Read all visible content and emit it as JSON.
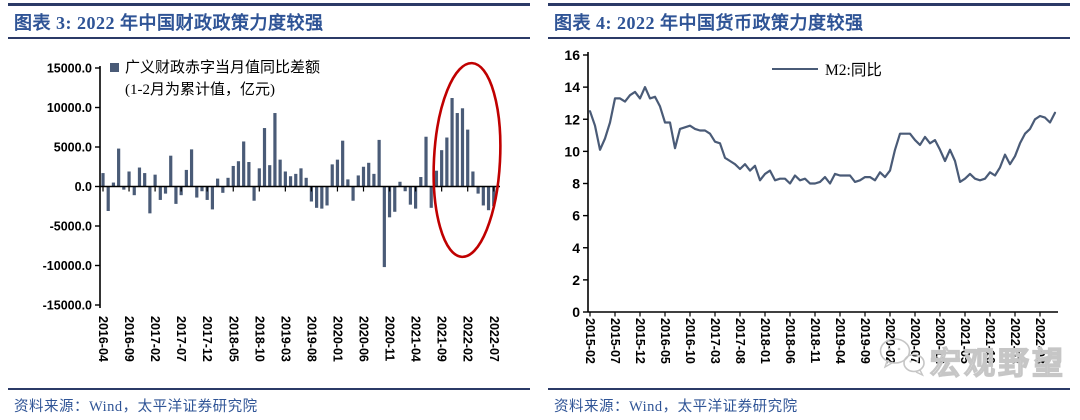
{
  "colors": {
    "rule_navy": "#2B3A67",
    "text_navy": "#2F5496",
    "series_blue": "#4A5B77",
    "axis_black": "#000000",
    "highlight_red": "#C00000",
    "watermark_gray": "#C6C6C6",
    "background": "#FFFFFF"
  },
  "panels": [
    {
      "title": "图表 3:  2022 年中国财政政策力度较强",
      "source": "资料来源：Wind，太平洋证券研究院",
      "legend": {
        "marker": "square",
        "line1": "广义财政赤字当月值同比差额",
        "line2": "(1-2月为累计值，亿元)"
      }
    },
    {
      "title": "图表 4:  2022 年中国货币政策力度较强",
      "source": "资料来源：Wind，太平洋证券研究院",
      "legend": {
        "marker": "line",
        "label": "M2:同比"
      }
    }
  ],
  "watermark": {
    "icon": "wechat-icon",
    "text": "宏观野望"
  },
  "chart_data": [
    {
      "type": "bar",
      "title": "2022 年中国财政政策力度较强",
      "series_name": "广义财政赤字当月值同比差额(1-2月为累计值，亿元)",
      "x_start": "2016-04",
      "frequency": "monthly",
      "x_tick_labels": [
        "2016-04",
        "2016-09",
        "2017-02",
        "2017-07",
        "2017-12",
        "2018-05",
        "2018-10",
        "2019-03",
        "2019-08",
        "2020-01",
        "2020-06",
        "2020-11",
        "2021-04",
        "2021-09",
        "2022-02",
        "2022-07"
      ],
      "ylim": [
        -15000,
        15000
      ],
      "y_tick_step": 5000,
      "y_tick_format": "0.0",
      "grid": false,
      "legend_position": "top-left-inside",
      "values": [
        1700,
        -3100,
        500,
        4800,
        -400,
        1900,
        -1100,
        2400,
        1700,
        -3400,
        1500,
        -1700,
        -900,
        3900,
        -2200,
        -1100,
        2100,
        4700,
        -1400,
        -600,
        -1700,
        -2900,
        1000,
        -800,
        1100,
        2600,
        3200,
        5700,
        3100,
        -1800,
        2300,
        7400,
        2700,
        9300,
        3400,
        1900,
        1300,
        1600,
        2300,
        1100,
        -1900,
        -2700,
        -2800,
        -2400,
        2800,
        3400,
        5800,
        900,
        -1800,
        1400,
        2500,
        3000,
        1600,
        5900,
        -10200,
        -3900,
        -3200,
        600,
        -600,
        -2300,
        -2800,
        1200,
        6300,
        -2700,
        2000,
        4600,
        6200,
        11200,
        9300,
        9900,
        7200,
        1900,
        -900,
        -2400,
        -3000,
        -2500
      ],
      "annotation": {
        "shape": "ellipse",
        "color": "#C00000",
        "highlights_months": [
          "2021-08",
          "2022-07"
        ],
        "meaning": "2022年附近财政赤字同比大幅走阔"
      }
    },
    {
      "type": "line",
      "title": "2022 年中国货币政策力度较强",
      "series_name": "M2:同比",
      "x_start": "2015-02",
      "frequency": "monthly",
      "x_tick_labels": [
        "2015-02",
        "2015-07",
        "2015-12",
        "2016-05",
        "2016-10",
        "2017-03",
        "2017-08",
        "2018-01",
        "2018-06",
        "2018-11",
        "2019-04",
        "2019-09",
        "2020-02",
        "2020-07",
        "2020-12",
        "2021-05",
        "2021-10",
        "2022-03",
        "2022-08"
      ],
      "ylim": [
        0,
        16
      ],
      "y_tick_step": 2,
      "grid": false,
      "legend_position": "top-center-inside",
      "values": [
        12.5,
        11.6,
        10.1,
        10.8,
        11.8,
        13.3,
        13.3,
        13.1,
        13.5,
        13.7,
        13.3,
        14.0,
        13.3,
        13.4,
        12.8,
        11.8,
        11.8,
        10.2,
        11.4,
        11.5,
        11.6,
        11.4,
        11.3,
        11.3,
        11.1,
        10.6,
        10.5,
        9.6,
        9.4,
        9.2,
        8.9,
        9.2,
        8.8,
        9.1,
        8.2,
        8.6,
        8.8,
        8.2,
        8.3,
        8.3,
        8.0,
        8.5,
        8.2,
        8.3,
        8.0,
        8.0,
        8.1,
        8.4,
        8.0,
        8.6,
        8.5,
        8.5,
        8.5,
        8.1,
        8.2,
        8.4,
        8.4,
        8.2,
        8.7,
        8.4,
        8.8,
        10.1,
        11.1,
        11.1,
        11.1,
        10.7,
        10.4,
        10.9,
        10.5,
        10.7,
        10.1,
        9.4,
        10.1,
        9.4,
        8.1,
        8.3,
        8.6,
        8.3,
        8.2,
        8.3,
        8.7,
        8.5,
        9.0,
        9.8,
        9.2,
        9.7,
        10.5,
        11.1,
        11.4,
        12.0,
        12.2,
        12.1,
        11.8,
        12.4
      ]
    }
  ]
}
